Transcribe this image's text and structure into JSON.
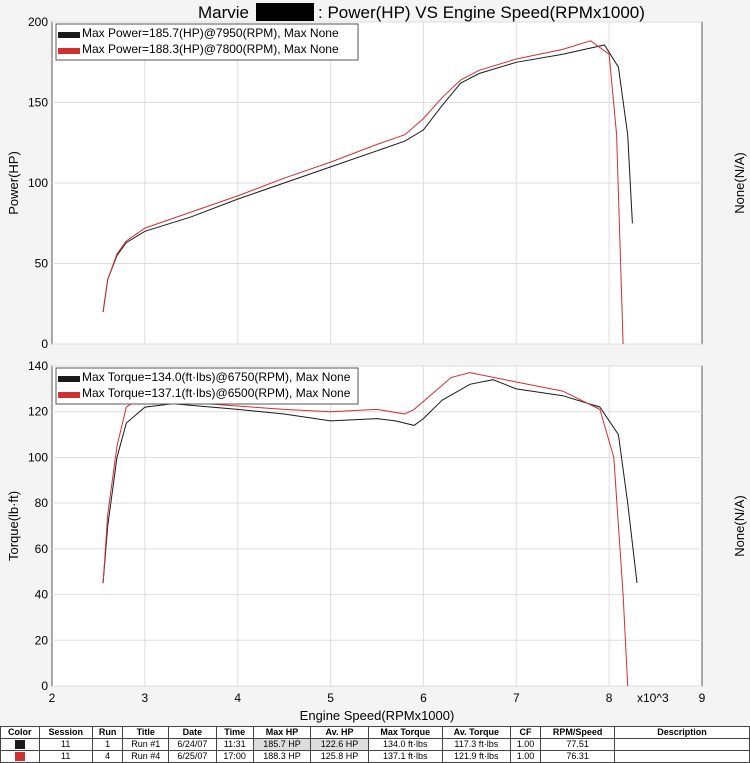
{
  "title_prefix": "Marvie",
  "title_suffix": ": Power(HP) VS Engine Speed(RPMx1000)",
  "colors": {
    "run1": "#1a1a1a",
    "run4": "#d03030"
  },
  "chart_data": [
    {
      "type": "line",
      "ylabel": "Power(HP)",
      "right_label": "None(N/A)",
      "ylim": [
        0,
        200
      ],
      "yticks": [
        0,
        50,
        100,
        150,
        200
      ],
      "xlim": [
        2,
        9
      ],
      "legend": [
        "Max Power=185.7(HP)@7950(RPM), Max None",
        "Max Power=188.3(HP)@7800(RPM), Max None"
      ],
      "legend_position": "top-left",
      "series": [
        {
          "name": "Max Power=185.7(HP)@7950(RPM), Max None",
          "x": [
            2.55,
            2.6,
            2.7,
            2.8,
            3,
            3.5,
            4,
            4.5,
            5,
            5.5,
            5.8,
            6,
            6.2,
            6.4,
            6.6,
            7,
            7.5,
            7.95,
            8.1,
            8.2,
            8.25
          ],
          "y": [
            20,
            40,
            55,
            63,
            70,
            79,
            90,
            100,
            110,
            120,
            126,
            133,
            148,
            162,
            168,
            175,
            180,
            185.7,
            172,
            130,
            75
          ]
        },
        {
          "name": "Max Power=188.3(HP)@7800(RPM), Max None",
          "x": [
            2.55,
            2.6,
            2.7,
            2.8,
            3,
            3.5,
            4,
            4.5,
            5,
            5.5,
            5.8,
            6,
            6.2,
            6.4,
            6.6,
            7,
            7.5,
            7.8,
            8,
            8.08,
            8.15
          ],
          "y": [
            20,
            40,
            56,
            64,
            72,
            82,
            92,
            103,
            113,
            124,
            130,
            140,
            153,
            164,
            170,
            177,
            183,
            188.3,
            180,
            130,
            0
          ]
        }
      ]
    },
    {
      "type": "line",
      "ylabel": "Torque(lb·ft)",
      "right_label": "None(N/A)",
      "xlabel": "Engine Speed(RPMx1000)",
      "x_multiplier": "x10^3",
      "ylim": [
        0,
        140
      ],
      "yticks": [
        0,
        20,
        40,
        60,
        80,
        100,
        120,
        140
      ],
      "xlim": [
        2,
        9
      ],
      "xticks": [
        2,
        3,
        4,
        5,
        6,
        7,
        8,
        9
      ],
      "legend": [
        "Max Torque=134.0(ft·lbs)@6750(RPM), Max None",
        "Max Torque=137.1(ft·lbs)@6500(RPM), Max None"
      ],
      "legend_position": "top-left",
      "series": [
        {
          "name": "Max Torque=134.0(ft·lbs)@6750(RPM), Max None",
          "x": [
            2.55,
            2.6,
            2.7,
            2.8,
            3,
            3.3,
            4,
            4.5,
            5,
            5.5,
            5.7,
            5.9,
            6,
            6.2,
            6.5,
            6.75,
            7,
            7.5,
            7.9,
            8.1,
            8.2,
            8.3
          ],
          "y": [
            45,
            70,
            100,
            115,
            122,
            123.5,
            121,
            119,
            116,
            117,
            116,
            114,
            117,
            125,
            132,
            134,
            130,
            127,
            122,
            110,
            80,
            45
          ]
        },
        {
          "name": "Max Torque=137.1(ft·lbs)@6500(RPM), Max None",
          "x": [
            2.55,
            2.6,
            2.7,
            2.8,
            2.95,
            3.3,
            4,
            4.5,
            5,
            5.5,
            5.8,
            5.9,
            6.1,
            6.3,
            6.5,
            7,
            7.5,
            7.9,
            8.05,
            8.15,
            8.2
          ],
          "y": [
            45,
            75,
            105,
            122,
            126,
            124.5,
            122.5,
            121,
            120,
            121,
            119,
            121,
            128,
            135,
            137.1,
            133,
            129,
            121,
            100,
            40,
            0
          ]
        }
      ]
    }
  ],
  "table": {
    "headers": [
      "Color",
      "Session",
      "Run",
      "Title",
      "Date",
      "Time",
      "Max HP",
      "Av. HP",
      "Max Torque",
      "Av. Torque",
      "CF",
      "RPM/Speed",
      "Description"
    ],
    "rows": [
      [
        "",
        "11",
        "1",
        "Run #1",
        "6/24/07",
        "11:31",
        "185.7 HP",
        "122.6 HP",
        "134.0 ft·lbs",
        "117.3 ft·lbs",
        "1.00",
        "77.51",
        ""
      ],
      [
        "",
        "11",
        "4",
        "Run #4",
        "6/25/07",
        "17:00",
        "188.3 HP",
        "125.8 HP",
        "137.1 ft·lbs",
        "121.9 ft·lbs",
        "1.00",
        "76.31",
        ""
      ]
    ]
  }
}
